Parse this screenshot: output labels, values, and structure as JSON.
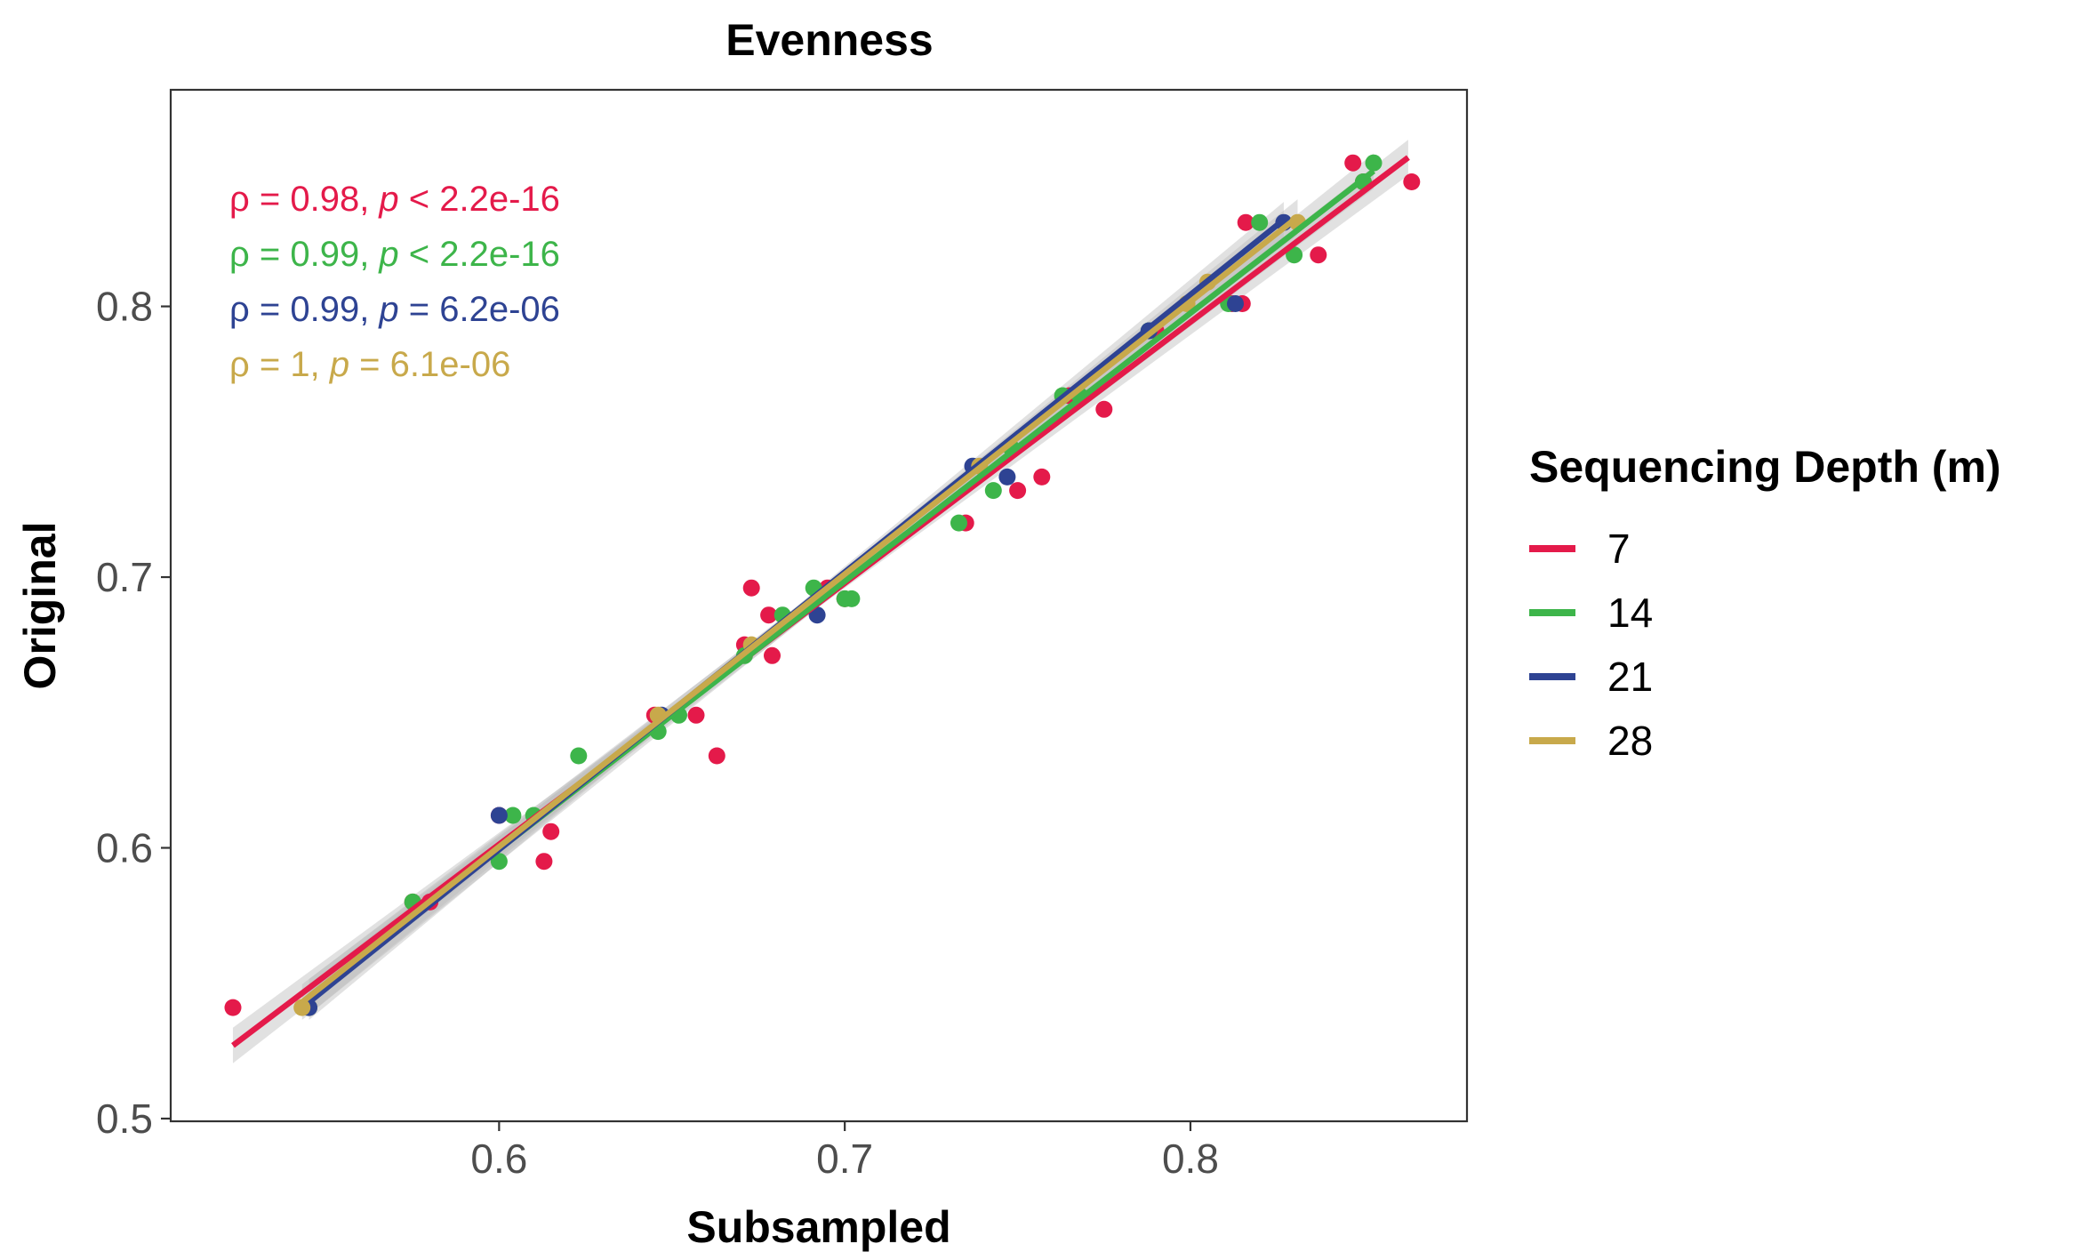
{
  "chart_data": {
    "type": "scatter",
    "title": "Evenness",
    "xlabel": "Subsampled",
    "ylabel": "Original",
    "xlim": [
      0.505,
      0.88
    ],
    "ylim": [
      0.499,
      0.88
    ],
    "xticks": [
      0.6,
      0.7,
      0.8
    ],
    "yticks": [
      0.5,
      0.6,
      0.7,
      0.8
    ],
    "xtick_labels": [
      "0.6",
      "0.7",
      "0.8"
    ],
    "ytick_labels": [
      "0.5",
      "0.6",
      "0.7",
      "0.8"
    ],
    "grid": false,
    "legend": {
      "title": "Sequencing Depth (m)",
      "placement": "right"
    },
    "series": [
      {
        "name": "7",
        "color": "#E41A4A",
        "points": [
          [
            0.523,
            0.541
          ],
          [
            0.545,
            0.541
          ],
          [
            0.575,
            0.58
          ],
          [
            0.58,
            0.58
          ],
          [
            0.6,
            0.612
          ],
          [
            0.613,
            0.595
          ],
          [
            0.615,
            0.606
          ],
          [
            0.645,
            0.649
          ],
          [
            0.657,
            0.649
          ],
          [
            0.663,
            0.634
          ],
          [
            0.671,
            0.675
          ],
          [
            0.673,
            0.696
          ],
          [
            0.678,
            0.686
          ],
          [
            0.679,
            0.671
          ],
          [
            0.695,
            0.696
          ],
          [
            0.7,
            0.692
          ],
          [
            0.735,
            0.72
          ],
          [
            0.75,
            0.732
          ],
          [
            0.757,
            0.737
          ],
          [
            0.765,
            0.767
          ],
          [
            0.775,
            0.762
          ],
          [
            0.79,
            0.791
          ],
          [
            0.812,
            0.801
          ],
          [
            0.815,
            0.801
          ],
          [
            0.816,
            0.831
          ],
          [
            0.837,
            0.819
          ],
          [
            0.847,
            0.853
          ],
          [
            0.85,
            0.846
          ],
          [
            0.864,
            0.846
          ]
        ],
        "fit": {
          "x0": 0.523,
          "y0": 0.527,
          "x1": 0.863,
          "y1": 0.855
        },
        "annotation": {
          "rho_text": "ρ = 0.98, ",
          "p_symbol": "p",
          "p_text": " < 2.2e-16"
        }
      },
      {
        "name": "14",
        "color": "#3DB54A",
        "points": [
          [
            0.545,
            0.541
          ],
          [
            0.575,
            0.58
          ],
          [
            0.6,
            0.595
          ],
          [
            0.604,
            0.612
          ],
          [
            0.61,
            0.612
          ],
          [
            0.623,
            0.634
          ],
          [
            0.646,
            0.643
          ],
          [
            0.652,
            0.649
          ],
          [
            0.671,
            0.671
          ],
          [
            0.682,
            0.686
          ],
          [
            0.691,
            0.696
          ],
          [
            0.7,
            0.692
          ],
          [
            0.702,
            0.692
          ],
          [
            0.733,
            0.72
          ],
          [
            0.743,
            0.732
          ],
          [
            0.748,
            0.748
          ],
          [
            0.763,
            0.767
          ],
          [
            0.768,
            0.767
          ],
          [
            0.788,
            0.791
          ],
          [
            0.811,
            0.801
          ],
          [
            0.82,
            0.831
          ],
          [
            0.83,
            0.819
          ],
          [
            0.85,
            0.846
          ],
          [
            0.853,
            0.853
          ]
        ],
        "fit": {
          "x0": 0.545,
          "y0": 0.545,
          "x1": 0.853,
          "y1": 0.85
        },
        "annotation": {
          "rho_text": "ρ = 0.99, ",
          "p_symbol": "p",
          "p_text": " < 2.2e-16"
        }
      },
      {
        "name": "21",
        "color": "#2E4393",
        "points": [
          [
            0.545,
            0.541
          ],
          [
            0.6,
            0.612
          ],
          [
            0.647,
            0.649
          ],
          [
            0.692,
            0.686
          ],
          [
            0.737,
            0.741
          ],
          [
            0.747,
            0.737
          ],
          [
            0.788,
            0.791
          ],
          [
            0.813,
            0.801
          ],
          [
            0.827,
            0.831
          ]
        ],
        "fit": {
          "x0": 0.545,
          "y0": 0.543,
          "x1": 0.827,
          "y1": 0.832
        },
        "annotation": {
          "rho_text": "ρ = 0.99, ",
          "p_symbol": "p",
          "p_text": " = 6.2e-06"
        }
      },
      {
        "name": "28",
        "color": "#C8A94B",
        "points": [
          [
            0.543,
            0.541
          ],
          [
            0.646,
            0.649
          ],
          [
            0.673,
            0.675
          ],
          [
            0.739,
            0.741
          ],
          [
            0.799,
            0.801
          ],
          [
            0.805,
            0.809
          ],
          [
            0.831,
            0.831
          ]
        ],
        "fit": {
          "x0": 0.543,
          "y0": 0.543,
          "x1": 0.831,
          "y1": 0.833
        },
        "annotation": {
          "rho_text": "ρ = 1, ",
          "p_symbol": "p",
          "p_text": " = 6.1e-06"
        }
      }
    ]
  }
}
